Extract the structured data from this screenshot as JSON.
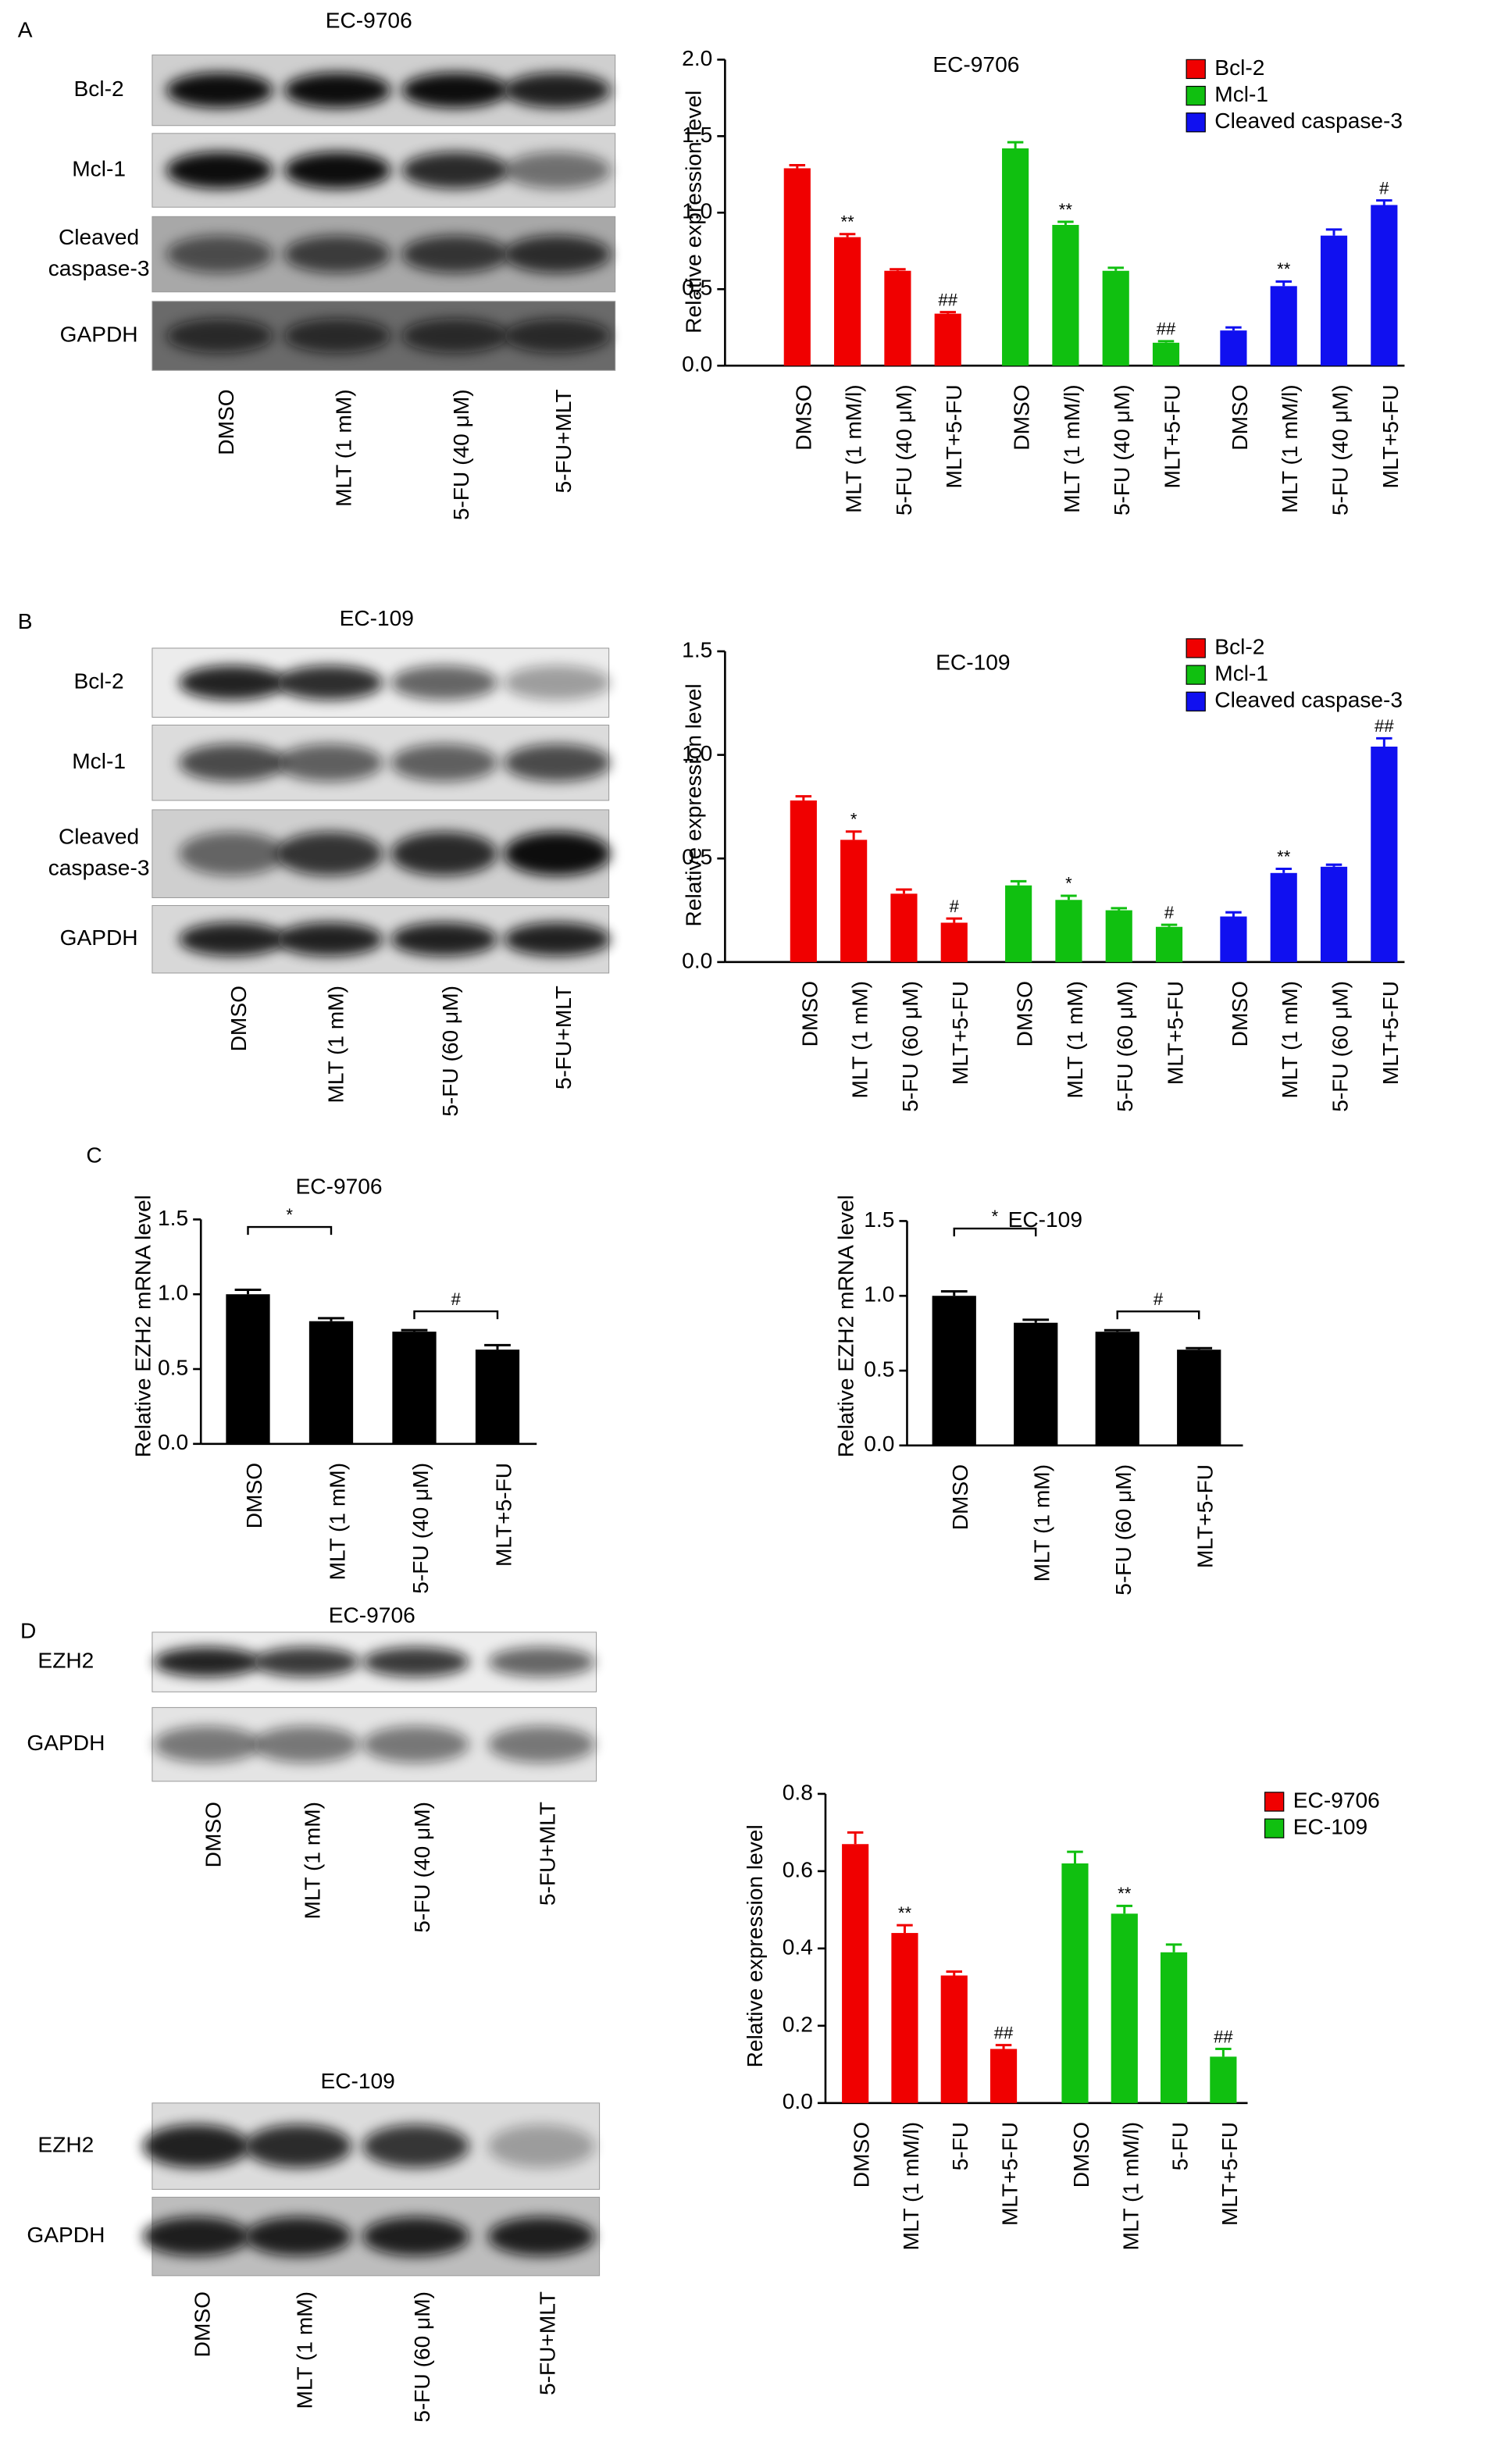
{
  "panels": [
    "A",
    "B",
    "C",
    "D"
  ],
  "blots": [
    {
      "title": "EC-9706",
      "rows": [
        [
          "Bcl-2"
        ],
        [
          "Mcl-1"
        ],
        [
          "Cleaved",
          "caspase-3"
        ],
        [
          "GAPDH"
        ]
      ],
      "lanes": [
        "DMSO",
        "MLT (1 mM)",
        "5-FU (40 μM)",
        "5-FU+MLT"
      ]
    },
    {
      "title": "EC-109",
      "rows": [
        [
          "Bcl-2"
        ],
        [
          "Mcl-1"
        ],
        [
          "Cleaved",
          "caspase-3"
        ],
        [
          "GAPDH"
        ]
      ],
      "lanes": [
        "DMSO",
        "MLT (1 mM)",
        "5-FU (60 μM)",
        "5-FU+MLT"
      ]
    },
    {
      "title": "EC-9706",
      "rows": [
        [
          "EZH2"
        ],
        [
          "GAPDH"
        ]
      ],
      "lanes": [
        "DMSO",
        "MLT (1 mM)",
        "5-FU (40 μM)",
        "5-FU+MLT"
      ]
    },
    {
      "title": "EC-109",
      "rows": [
        [
          "EZH2"
        ],
        [
          "GAPDH"
        ]
      ],
      "lanes": [
        "DMSO",
        "MLT (1 mM)",
        "5-FU (60 μM)",
        "5-FU+MLT"
      ]
    }
  ],
  "chart_data": [
    {
      "type": "bar",
      "title": "EC-9706",
      "y_label": "Relative expression level",
      "ylim": [
        0,
        2
      ],
      "yticks": [
        {
          "value": 0,
          "label": "0.0"
        },
        0.5,
        {
          "value": 1,
          "label": "1.0"
        },
        1.5,
        {
          "value": 2,
          "label": "2.0"
        }
      ],
      "legend": "top-right",
      "series": [
        {
          "name": "Bcl-2",
          "color": "#f00000",
          "categories": [
            "DMSO",
            "MLT (1 mM/l)",
            "5-FU (40 μM)",
            "MLT+5-FU"
          ],
          "values": [
            1.29,
            0.84,
            0.62,
            0.34
          ],
          "errors": [
            0.02,
            0.02,
            0.01,
            0.01
          ],
          "annotations": [
            null,
            "**",
            null,
            "##"
          ]
        },
        {
          "name": "Mcl-1",
          "color": "#10c010",
          "categories": [
            "DMSO",
            "MLT (1 mM/l)",
            "5-FU (40 μM)",
            "MLT+5-FU"
          ],
          "values": [
            1.42,
            0.92,
            0.62,
            0.15
          ],
          "errors": [
            0.04,
            0.02,
            0.02,
            0.01
          ],
          "annotations": [
            null,
            "**",
            null,
            "##"
          ]
        },
        {
          "name": "Cleaved caspase-3",
          "color": "#1010f0",
          "categories": [
            "DMSO",
            "MLT (1 mM/l)",
            "5-FU (40 μM)",
            "MLT+5-FU"
          ],
          "values": [
            0.23,
            0.52,
            0.85,
            1.05
          ],
          "errors": [
            0.02,
            0.03,
            0.04,
            0.03
          ],
          "annotations": [
            null,
            "**",
            null,
            "#"
          ]
        }
      ]
    },
    {
      "type": "bar",
      "title": "EC-109",
      "y_label": "Relative expression level",
      "ylim": [
        0,
        1.5
      ],
      "yticks": [
        {
          "value": 0,
          "label": "0.0"
        },
        0.5,
        {
          "value": 1,
          "label": "1.0"
        },
        1.5
      ],
      "legend": "top-right",
      "series": [
        {
          "name": "Bcl-2",
          "color": "#f00000",
          "categories": [
            "DMSO",
            "MLT (1 mM)",
            "5-FU (60 μM)",
            "MLT+5-FU"
          ],
          "values": [
            0.78,
            0.59,
            0.33,
            0.19
          ],
          "errors": [
            0.02,
            0.04,
            0.02,
            0.02
          ],
          "annotations": [
            null,
            "*",
            null,
            "#"
          ]
        },
        {
          "name": "Mcl-1",
          "color": "#10c010",
          "categories": [
            "DMSO",
            "MLT (1 mM)",
            "5-FU (60 μM)",
            "MLT+5-FU"
          ],
          "values": [
            0.37,
            0.3,
            0.25,
            0.17
          ],
          "errors": [
            0.02,
            0.02,
            0.01,
            0.01
          ],
          "annotations": [
            null,
            "*",
            null,
            "#"
          ]
        },
        {
          "name": "Cleaved caspase-3",
          "color": "#1010f0",
          "categories": [
            "DMSO",
            "MLT (1 mM)",
            "5-FU (60 μM)",
            "MLT+5-FU"
          ],
          "values": [
            0.22,
            0.43,
            0.46,
            1.04
          ],
          "errors": [
            0.02,
            0.02,
            0.01,
            0.04
          ],
          "annotations": [
            null,
            "**",
            null,
            "##"
          ]
        }
      ]
    },
    {
      "type": "bar",
      "title": "EC-9706",
      "y_label": "Relative EZH2 mRNA level",
      "ylim": [
        0,
        1.5
      ],
      "yticks": [
        {
          "value": 0,
          "label": "0.0"
        },
        0.5,
        {
          "value": 1,
          "label": "1.0"
        },
        1.5
      ],
      "categories": [
        "DMSO",
        "MLT (1 mM)",
        "5-FU (40 μM)",
        "MLT+5-FU"
      ],
      "values": [
        1.0,
        0.82,
        0.75,
        0.63
      ],
      "errors": [
        0.03,
        0.02,
        0.01,
        0.03
      ],
      "color": "#000000",
      "comparisons": [
        {
          "label": "*",
          "categories": [
            "DMSO",
            "MLT (1 mM)"
          ]
        },
        {
          "label": "#",
          "categories": [
            "5-FU (40 μM)",
            "MLT+5-FU"
          ]
        }
      ]
    },
    {
      "type": "bar",
      "title": "EC-109",
      "y_label": "Relative EZH2 mRNA level",
      "ylim": [
        0,
        1.5
      ],
      "yticks": [
        {
          "value": 0,
          "label": "0.0"
        },
        0.5,
        {
          "value": 1,
          "label": "1.0"
        },
        1.5
      ],
      "categories": [
        "DMSO",
        "MLT (1 mM)",
        "5-FU (60 μM)",
        "MLT+5-FU"
      ],
      "values": [
        1.0,
        0.82,
        0.76,
        0.64
      ],
      "errors": [
        0.03,
        0.02,
        0.01,
        0.01
      ],
      "color": "#000000",
      "comparisons": [
        {
          "label": "*",
          "categories": [
            "DMSO",
            "MLT (1 mM)"
          ]
        },
        {
          "label": "#",
          "categories": [
            "5-FU (60 μM)",
            "MLT+5-FU"
          ]
        }
      ]
    },
    {
      "type": "bar",
      "y_label": "Relative expression level",
      "ylim": [
        0,
        0.8
      ],
      "yticks": [
        {
          "value": 0,
          "label": "0.0"
        },
        0.2,
        0.4,
        0.6,
        0.8
      ],
      "legend": "top-right",
      "series": [
        {
          "name": "EC-9706",
          "color": "#f00000",
          "categories": [
            "DMSO",
            "MLT (1 mM/l)",
            "5-FU",
            "MLT+5-FU"
          ],
          "values": [
            0.67,
            0.44,
            0.33,
            0.14
          ],
          "errors": [
            0.03,
            0.02,
            0.01,
            0.01
          ],
          "annotations": [
            null,
            "**",
            null,
            "##"
          ]
        },
        {
          "name": "EC-109",
          "color": "#10c010",
          "categories": [
            "DMSO",
            "MLT (1 mM/l)",
            "5-FU",
            "MLT+5-FU"
          ],
          "values": [
            0.62,
            0.49,
            0.39,
            0.12
          ],
          "errors": [
            0.03,
            0.02,
            0.02,
            0.02
          ],
          "annotations": [
            null,
            "**",
            null,
            "##"
          ]
        }
      ]
    }
  ]
}
